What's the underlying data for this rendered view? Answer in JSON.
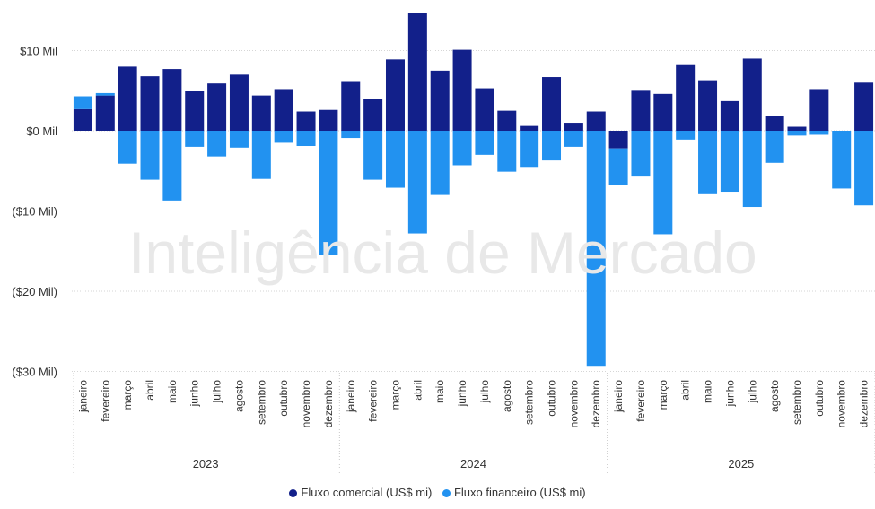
{
  "chart_data": {
    "type": "bar",
    "stacked": true,
    "yaxis": {
      "ticks": [
        10,
        0,
        -10,
        -20,
        -30
      ],
      "tick_labels": [
        "$10 Mil",
        "$0 Mil",
        "($10 Mil)",
        "($20 Mil)",
        "($30 Mil)"
      ],
      "ylim": [
        -30,
        14.5
      ]
    },
    "grid": true,
    "legend_position": "bottom-center",
    "watermark": "Inteligência de Mercado",
    "years": [
      "2023",
      "2024",
      "2025"
    ],
    "months": [
      "janeiro",
      "fevereiro",
      "março",
      "abril",
      "maio",
      "junho",
      "julho",
      "agosto",
      "setembro",
      "outubro",
      "novembro",
      "dezembro"
    ],
    "categories": [
      "janeiro 2023",
      "fevereiro 2023",
      "março 2023",
      "abril 2023",
      "maio 2023",
      "junho 2023",
      "julho 2023",
      "agosto 2023",
      "setembro 2023",
      "outubro 2023",
      "novembro 2023",
      "dezembro 2023",
      "janeiro 2024",
      "fevereiro 2024",
      "março 2024",
      "abril 2024",
      "maio 2024",
      "junho 2024",
      "julho 2024",
      "agosto 2024",
      "setembro 2024",
      "outubro 2024",
      "novembro 2024",
      "dezembro 2024",
      "janeiro 2025",
      "fevereiro 2025",
      "março 2025",
      "abril 2025",
      "maio 2025",
      "junho 2025",
      "julho 2025",
      "agosto 2025",
      "setembro 2025",
      "outubro 2025",
      "novembro 2025",
      "dezembro 2025"
    ],
    "series": [
      {
        "name": "Fluxo comercial (US$ mi)",
        "color": "#12208a",
        "values": [
          2.7,
          4.4,
          8.0,
          6.8,
          7.7,
          5.0,
          5.9,
          7.0,
          4.4,
          5.2,
          2.4,
          2.6,
          6.2,
          4.0,
          8.9,
          14.7,
          7.5,
          10.1,
          5.3,
          2.5,
          0.6,
          6.7,
          1.0,
          2.4,
          -2.2,
          5.1,
          4.6,
          8.3,
          6.3,
          3.7,
          9.0,
          1.8,
          0.5,
          5.2,
          0.0,
          6.0
        ]
      },
      {
        "name": "Fluxo financeiro (US$ mi)",
        "color": "#2292f0",
        "values": [
          1.6,
          0.3,
          -4.1,
          -6.1,
          -8.7,
          -2.0,
          -3.2,
          -2.1,
          -6.0,
          -1.5,
          -1.9,
          -15.5,
          -0.9,
          -6.1,
          -7.1,
          -12.8,
          -8.0,
          -4.3,
          -3.0,
          -5.1,
          -4.5,
          -3.7,
          -2.0,
          -29.3,
          -4.6,
          -5.6,
          -12.9,
          -1.1,
          -7.8,
          -7.6,
          -9.5,
          -4.0,
          -0.6,
          -0.5,
          -7.2,
          -9.3
        ]
      }
    ]
  }
}
